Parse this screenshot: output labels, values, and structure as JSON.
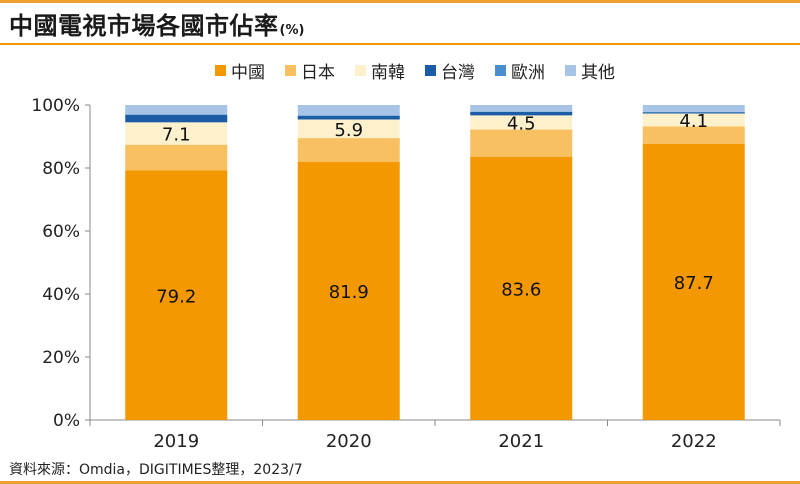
{
  "title": "中國電視市場各國市佔率",
  "title_unit": "(%)",
  "source": "資料來源：Omdia，DIGITIMES整理，2023/7",
  "chart_data": {
    "type": "bar",
    "stacked": true,
    "title": "中國電視市場各國市佔率",
    "categories": [
      "2019",
      "2020",
      "2021",
      "2022"
    ],
    "ylim": [
      0,
      100
    ],
    "y_ticks": [
      "0%",
      "20%",
      "40%",
      "60%",
      "80%",
      "100%"
    ],
    "grid": false,
    "legend_position": "top",
    "series": [
      {
        "name": "中國",
        "color": "#f39800",
        "values": [
          79.2,
          81.9,
          83.6,
          87.7
        ],
        "labels": [
          "79.2",
          "81.9",
          "83.6",
          "87.7"
        ]
      },
      {
        "name": "日本",
        "color": "#f8c060",
        "values": [
          8.2,
          7.6,
          8.6,
          5.5
        ],
        "labels": []
      },
      {
        "name": "南韓",
        "color": "#fdf0cc",
        "values": [
          7.1,
          5.9,
          4.5,
          4.1
        ],
        "labels": [
          "7.1",
          "5.9",
          "4.5",
          "4.1"
        ]
      },
      {
        "name": "台灣",
        "color": "#1a5da6",
        "values": [
          2.4,
          1.2,
          1.1,
          0.4
        ],
        "labels": []
      },
      {
        "name": "歐洲",
        "color": "#4a8ed0",
        "values": [
          0.1,
          0.1,
          0.1,
          0.1
        ],
        "labels": []
      },
      {
        "name": "其他",
        "color": "#a7c4e6",
        "values": [
          3.0,
          3.3,
          2.1,
          2.2
        ],
        "labels": []
      }
    ]
  }
}
